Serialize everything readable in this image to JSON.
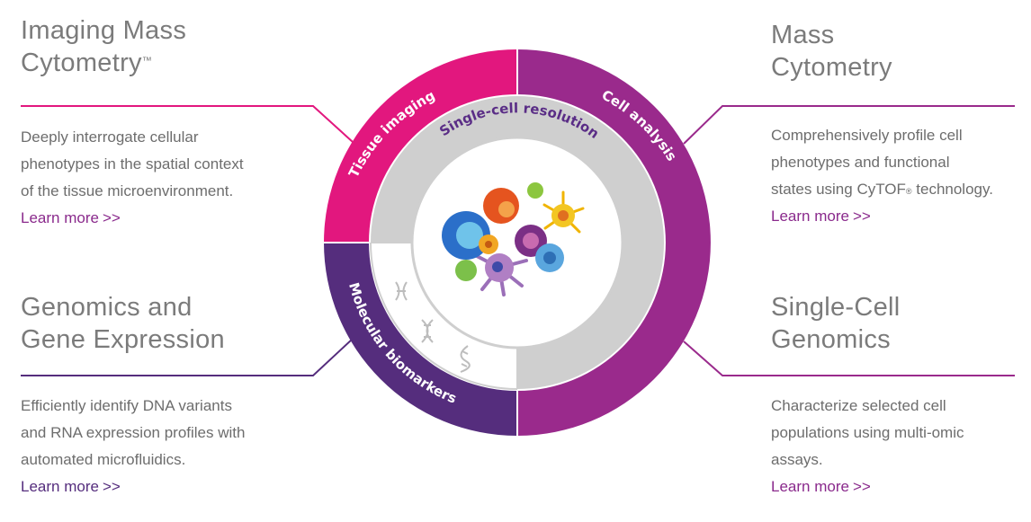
{
  "colors": {
    "magenta": "#e2177e",
    "purple": "#9a2a8c",
    "dark_purple": "#552d7d",
    "link": "#8a2a8c",
    "gray_ring": "#cfcfcf",
    "text": "#6d6d6d"
  },
  "panels": {
    "imaging": {
      "title_line1": "Imaging Mass",
      "title_line2": "Cytometry",
      "title_mark": "™",
      "desc_line1": "Deeply interrogate cellular",
      "desc_line2": "phenotypes in the spatial context",
      "desc_line3": "of the tissue microenvironment.",
      "link": "Learn more",
      "link_arrows": ">>"
    },
    "mass": {
      "title_line1": "Mass",
      "title_line2": "Cytometry",
      "desc_line1": "Comprehensively profile cell",
      "desc_line2": "phenotypes and functional",
      "desc_line3_pre": "states using CyTOF",
      "desc_line3_mark": "®",
      "desc_line3_post": " technology.",
      "link": "Learn more",
      "link_arrows": ">>"
    },
    "genomics": {
      "title_line1": "Genomics and",
      "title_line2": "Gene Expression",
      "desc_line1": "Efficiently identify DNA variants",
      "desc_line2": "and RNA expression profiles with",
      "desc_line3": "automated microfluidics.",
      "link": "Learn more",
      "link_arrows": ">>"
    },
    "single_cell": {
      "title_line1": "Single-Cell",
      "title_line2": "Genomics",
      "desc_line1": "Characterize selected cell",
      "desc_line2": "populations using multi-omic",
      "desc_line3": "assays.",
      "link": "Learn more",
      "link_arrows": ">>"
    }
  },
  "ring": {
    "tissue_imaging": "Tissue imaging",
    "cell_analysis": "Cell analysis",
    "molecular_biomarkers": "Molecular biomarkers",
    "single_cell_resolution": "Single-cell resolution"
  },
  "icons": {
    "center": "cells-illustration-icon",
    "chromosome": "chromosome-icon",
    "dna": "dna-helix-icon",
    "rna": "rna-strand-icon"
  }
}
